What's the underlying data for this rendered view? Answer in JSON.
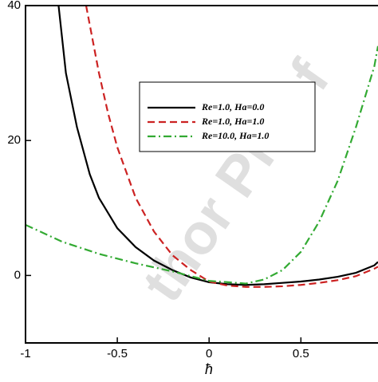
{
  "chart_data": {
    "type": "line",
    "xlabel": "ħ",
    "watermark": "thor Proof",
    "xlim": [
      -1,
      0.92
    ],
    "ylim": [
      -10,
      40
    ],
    "xticks": [
      -1,
      -0.5,
      0,
      0.5
    ],
    "yticks": [
      0,
      20,
      40
    ],
    "legend": "upper right",
    "series": [
      {
        "name": "Re=1.0, Ha=0.0",
        "color": "#000000",
        "dash": "solid",
        "x": [
          -0.82,
          -0.78,
          -0.72,
          -0.65,
          -0.6,
          -0.5,
          -0.4,
          -0.3,
          -0.2,
          -0.1,
          0,
          0.1,
          0.2,
          0.3,
          0.4,
          0.5,
          0.6,
          0.7,
          0.8,
          0.9,
          0.92
        ],
        "values": [
          40,
          30,
          22,
          15,
          11.5,
          7,
          4.2,
          2.2,
          0.8,
          -0.3,
          -1,
          -1.3,
          -1.4,
          -1.3,
          -1.1,
          -0.9,
          -0.6,
          -0.2,
          0.4,
          1.5,
          2
        ]
      },
      {
        "name": "Re=1.0, Ha=1.0",
        "color": "#cc2222",
        "dash": "dashed",
        "x": [
          -0.67,
          -0.6,
          -0.55,
          -0.5,
          -0.4,
          -0.3,
          -0.2,
          -0.1,
          0,
          0.1,
          0.2,
          0.3,
          0.4,
          0.5,
          0.6,
          0.7,
          0.8,
          0.9,
          0.92
        ],
        "values": [
          40,
          30,
          24,
          19,
          11.5,
          6.5,
          3,
          0.8,
          -0.9,
          -1.5,
          -1.7,
          -1.7,
          -1.6,
          -1.4,
          -1.1,
          -0.7,
          -0.1,
          1,
          1.3
        ]
      },
      {
        "name": "Re=10.0, Ha=1.0",
        "color": "#33aa33",
        "dash": "dashdot",
        "x": [
          -1,
          -0.8,
          -0.6,
          -0.4,
          -0.2,
          0,
          0.2,
          0.3,
          0.4,
          0.5,
          0.6,
          0.7,
          0.8,
          0.9,
          0.92
        ],
        "values": [
          7.5,
          5,
          3.2,
          1.8,
          0.6,
          -0.8,
          -1.2,
          -0.6,
          0.8,
          3.5,
          8,
          14,
          22,
          31,
          34
        ]
      }
    ]
  }
}
